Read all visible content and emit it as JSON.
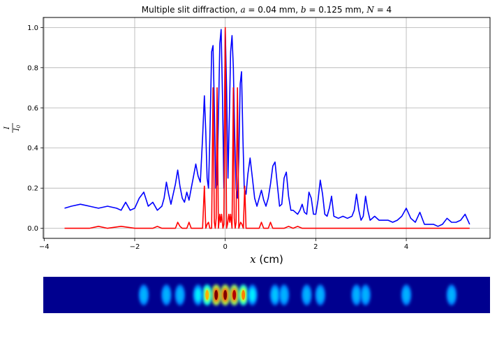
{
  "chart_data": {
    "type": "line",
    "title": "Multiple slit diffraction, a = 0.04 mm, b = 0.125 mm, N = 4",
    "title_parts": {
      "prefix": "Multiple slit diffraction, ",
      "a_var": "a",
      "a_val": " = 0.04 mm, ",
      "b_var": "b",
      "b_val": " = 0.125 mm, ",
      "n_var": "N",
      "n_val": " = 4"
    },
    "xlabel": {
      "var": "x",
      "unit": " (cm)"
    },
    "ylabel": {
      "num": "I",
      "den": "I",
      "den_sub": "0"
    },
    "xlim": [
      -4.02,
      5.85
    ],
    "ylim": [
      -0.05,
      1.05
    ],
    "xticks": [
      -4,
      -2,
      0,
      2,
      4
    ],
    "xtick_labels": [
      "−4",
      "−2",
      "0",
      "2",
      "4"
    ],
    "yticks": [
      0.0,
      0.2,
      0.4,
      0.6,
      0.8,
      1.0
    ],
    "ytick_labels": [
      "0.0",
      "0.2",
      "0.4",
      "0.6",
      "0.8",
      "1.0"
    ],
    "grid": true,
    "series": [
      {
        "color": "#0000ff",
        "x": [
          -3.55,
          -3.4,
          -3.2,
          -3.0,
          -2.8,
          -2.6,
          -2.4,
          -2.3,
          -2.2,
          -2.1,
          -2.0,
          -1.9,
          -1.8,
          -1.7,
          -1.6,
          -1.5,
          -1.4,
          -1.35,
          -1.3,
          -1.25,
          -1.2,
          -1.15,
          -1.1,
          -1.05,
          -1.0,
          -0.95,
          -0.9,
          -0.85,
          -0.8,
          -0.75,
          -0.7,
          -0.65,
          -0.6,
          -0.55,
          -0.5,
          -0.46,
          -0.43,
          -0.4,
          -0.37,
          -0.34,
          -0.3,
          -0.27,
          -0.24,
          -0.21,
          -0.18,
          -0.15,
          -0.12,
          -0.09,
          -0.06,
          -0.03,
          0.0,
          0.03,
          0.06,
          0.09,
          0.12,
          0.15,
          0.18,
          0.21,
          0.24,
          0.27,
          0.3,
          0.33,
          0.36,
          0.39,
          0.42,
          0.46,
          0.5,
          0.55,
          0.6,
          0.65,
          0.7,
          0.75,
          0.8,
          0.85,
          0.9,
          0.95,
          1.0,
          1.05,
          1.1,
          1.15,
          1.2,
          1.25,
          1.3,
          1.35,
          1.4,
          1.45,
          1.5,
          1.55,
          1.6,
          1.65,
          1.7,
          1.75,
          1.8,
          1.85,
          1.9,
          1.95,
          2.0,
          2.05,
          2.1,
          2.15,
          2.2,
          2.25,
          2.3,
          2.35,
          2.4,
          2.5,
          2.6,
          2.7,
          2.8,
          2.85,
          2.9,
          2.95,
          3.0,
          3.05,
          3.1,
          3.15,
          3.2,
          3.3,
          3.4,
          3.5,
          3.6,
          3.7,
          3.8,
          3.9,
          4.0,
          4.1,
          4.2,
          4.3,
          4.4,
          4.5,
          4.6,
          4.7,
          4.8,
          4.9,
          5.0,
          5.1,
          5.2,
          5.3,
          5.4
        ],
        "y": [
          0.1,
          0.11,
          0.12,
          0.11,
          0.1,
          0.11,
          0.1,
          0.09,
          0.13,
          0.09,
          0.1,
          0.15,
          0.18,
          0.11,
          0.13,
          0.09,
          0.11,
          0.15,
          0.23,
          0.17,
          0.12,
          0.17,
          0.22,
          0.29,
          0.21,
          0.15,
          0.13,
          0.18,
          0.14,
          0.2,
          0.26,
          0.32,
          0.26,
          0.23,
          0.45,
          0.66,
          0.48,
          0.25,
          0.2,
          0.45,
          0.88,
          0.91,
          0.6,
          0.2,
          0.22,
          0.55,
          0.92,
          0.99,
          0.65,
          0.2,
          0.99,
          0.7,
          0.25,
          0.55,
          0.88,
          0.96,
          0.8,
          0.45,
          0.2,
          0.15,
          0.35,
          0.72,
          0.78,
          0.45,
          0.2,
          0.17,
          0.27,
          0.35,
          0.25,
          0.15,
          0.11,
          0.15,
          0.19,
          0.14,
          0.11,
          0.15,
          0.22,
          0.31,
          0.33,
          0.22,
          0.11,
          0.12,
          0.25,
          0.28,
          0.16,
          0.09,
          0.09,
          0.08,
          0.07,
          0.09,
          0.12,
          0.08,
          0.07,
          0.18,
          0.15,
          0.07,
          0.07,
          0.14,
          0.24,
          0.17,
          0.07,
          0.06,
          0.1,
          0.16,
          0.06,
          0.05,
          0.06,
          0.05,
          0.06,
          0.09,
          0.17,
          0.09,
          0.04,
          0.06,
          0.16,
          0.09,
          0.04,
          0.06,
          0.04,
          0.04,
          0.04,
          0.03,
          0.04,
          0.06,
          0.1,
          0.05,
          0.03,
          0.08,
          0.02,
          0.02,
          0.02,
          0.01,
          0.02,
          0.05,
          0.03,
          0.03,
          0.04,
          0.07,
          0.02
        ]
      },
      {
        "color": "#ff0000",
        "x": [
          -3.55,
          -3.0,
          -2.8,
          -2.6,
          -2.3,
          -2.0,
          -1.6,
          -1.5,
          -1.4,
          -1.1,
          -1.05,
          -1.0,
          -0.95,
          -0.85,
          -0.8,
          -0.75,
          -0.6,
          -0.5,
          -0.46,
          -0.43,
          -0.4,
          -0.37,
          -0.34,
          -0.3,
          -0.27,
          -0.24,
          -0.22,
          -0.2,
          -0.18,
          -0.15,
          -0.12,
          -0.1,
          -0.08,
          -0.05,
          -0.03,
          0.0,
          0.03,
          0.05,
          0.08,
          0.1,
          0.12,
          0.15,
          0.18,
          0.2,
          0.22,
          0.24,
          0.27,
          0.3,
          0.34,
          0.37,
          0.4,
          0.43,
          0.46,
          0.5,
          0.6,
          0.75,
          0.8,
          0.85,
          0.95,
          1.0,
          1.05,
          1.1,
          1.3,
          1.4,
          1.5,
          1.6,
          1.7,
          1.8,
          2.0,
          2.3,
          2.6,
          2.9,
          3.2,
          3.5,
          4.0,
          4.5,
          5.0,
          5.4
        ],
        "y": [
          0.0,
          0.0,
          0.01,
          0.0,
          0.01,
          0.0,
          0.0,
          0.01,
          0.0,
          0.0,
          0.03,
          0.01,
          0.0,
          0.0,
          0.03,
          0.0,
          0.0,
          0.0,
          0.21,
          0.0,
          0.02,
          0.03,
          0.0,
          0.0,
          0.7,
          0.03,
          0.0,
          0.05,
          0.7,
          0.0,
          0.07,
          0.03,
          0.07,
          0.0,
          0.02,
          1.0,
          0.0,
          0.02,
          0.07,
          0.03,
          0.07,
          0.0,
          0.7,
          0.05,
          0.0,
          0.03,
          0.7,
          0.0,
          0.03,
          0.02,
          0.0,
          0.21,
          0.0,
          0.0,
          0.0,
          0.0,
          0.03,
          0.0,
          0.0,
          0.03,
          0.0,
          0.0,
          0.0,
          0.01,
          0.0,
          0.01,
          0.0,
          0.0,
          0.0,
          0.0,
          0.0,
          0.0,
          0.0,
          0.0,
          0.0,
          0.0,
          0.0,
          0.0
        ]
      }
    ],
    "image_strip": {
      "description_of_colormap": "jet",
      "peaks": [
        {
          "x": -0.2,
          "level": 1.0
        },
        {
          "x": 0.0,
          "level": 1.0
        },
        {
          "x": 0.2,
          "level": 0.95
        },
        {
          "x": 0.4,
          "level": 0.75
        },
        {
          "x": -0.4,
          "level": 0.7
        },
        {
          "x": -0.6,
          "level": 0.45
        },
        {
          "x": 0.6,
          "level": 0.45
        },
        {
          "x": 1.1,
          "level": 0.4
        },
        {
          "x": 1.3,
          "level": 0.35
        },
        {
          "x": -1.0,
          "level": 0.3
        },
        {
          "x": 2.1,
          "level": 0.3
        },
        {
          "x": 1.8,
          "level": 0.25
        },
        {
          "x": 2.9,
          "level": 0.25
        },
        {
          "x": 3.1,
          "level": 0.25
        },
        {
          "x": -1.3,
          "level": 0.2
        },
        {
          "x": 4.0,
          "level": 0.2
        },
        {
          "x": 5.0,
          "level": 0.18
        },
        {
          "x": -1.8,
          "level": 0.18
        }
      ]
    }
  }
}
